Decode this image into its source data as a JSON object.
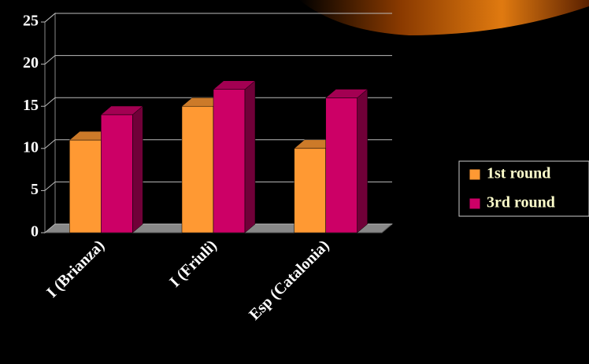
{
  "chart_data": {
    "type": "bar3d",
    "categories": [
      "I (Brianza)",
      "I (Friuli)",
      "Esp (Catalonia)"
    ],
    "series": [
      {
        "name": "1st round",
        "color": "#ff9933",
        "values": [
          11,
          15,
          10
        ]
      },
      {
        "name": "3rd round",
        "color": "#cc0066",
        "values": [
          14,
          17,
          16
        ]
      }
    ],
    "ylim": [
      0,
      25
    ],
    "yticks": [
      0,
      5,
      10,
      15,
      20,
      25
    ],
    "grid": true,
    "legend": "right"
  }
}
